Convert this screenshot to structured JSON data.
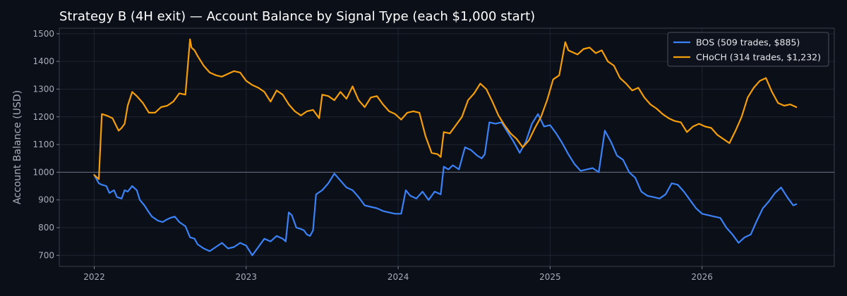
{
  "chart_data": {
    "type": "line",
    "title": "Strategy B (4H exit) — Account Balance by Signal Type (each $1,000 start)",
    "xlabel": "",
    "ylabel": "Account Balance (USD)",
    "xlim": [
      2021.77,
      2026.87
    ],
    "ylim": [
      660,
      1520
    ],
    "x_ticks": [
      2022,
      2023,
      2024,
      2025,
      2026
    ],
    "x_tick_labels": [
      "2022",
      "2023",
      "2024",
      "2025",
      "2026"
    ],
    "y_ticks": [
      700,
      800,
      900,
      1000,
      1100,
      1200,
      1300,
      1400,
      1500
    ],
    "y_tick_labels": [
      "700",
      "800",
      "900",
      "1000",
      "1100",
      "1200",
      "1300",
      "1400",
      "1500"
    ],
    "reference_line": 1000,
    "grid": true,
    "legend_position": "top-right",
    "series": [
      {
        "name": "BOS (509 trades, $885)",
        "color": "#3b82f6",
        "x": [
          2022.0,
          2022.03,
          2022.05,
          2022.08,
          2022.1,
          2022.13,
          2022.15,
          2022.18,
          2022.2,
          2022.22,
          2022.25,
          2022.28,
          2022.3,
          2022.33,
          2022.36,
          2022.38,
          2022.42,
          2022.45,
          2022.48,
          2022.5,
          2022.53,
          2022.56,
          2022.6,
          2022.63,
          2022.66,
          2022.68,
          2022.72,
          2022.76,
          2022.8,
          2022.84,
          2022.88,
          2022.92,
          2022.96,
          2023.0,
          2023.04,
          2023.08,
          2023.12,
          2023.16,
          2023.2,
          2023.24,
          2023.26,
          2023.28,
          2023.3,
          2023.33,
          2023.36,
          2023.38,
          2023.4,
          2023.42,
          2023.44,
          2023.46,
          2023.5,
          2023.54,
          2023.58,
          2023.62,
          2023.66,
          2023.7,
          2023.74,
          2023.78,
          2023.82,
          2023.86,
          2023.9,
          2023.94,
          2023.98,
          2024.02,
          2024.05,
          2024.08,
          2024.12,
          2024.16,
          2024.2,
          2024.24,
          2024.28,
          2024.3,
          2024.33,
          2024.36,
          2024.4,
          2024.44,
          2024.48,
          2024.52,
          2024.55,
          2024.57,
          2024.6,
          2024.64,
          2024.68,
          2024.72,
          2024.76,
          2024.8,
          2024.84,
          2024.88,
          2024.92,
          2024.96,
          2025.0,
          2025.04,
          2025.08,
          2025.12,
          2025.16,
          2025.2,
          2025.24,
          2025.28,
          2025.32,
          2025.36,
          2025.4,
          2025.44,
          2025.48,
          2025.52,
          2025.56,
          2025.6,
          2025.64,
          2025.68,
          2025.72,
          2025.76,
          2025.8,
          2025.84,
          2025.88,
          2025.92,
          2025.96,
          2026.0,
          2026.04,
          2026.08,
          2026.12,
          2026.16,
          2026.2,
          2026.24,
          2026.28,
          2026.32,
          2026.36,
          2026.4,
          2026.44,
          2026.48,
          2026.52,
          2026.56,
          2026.6,
          2026.62
        ],
        "values": [
          990,
          960,
          955,
          950,
          925,
          935,
          910,
          905,
          935,
          930,
          950,
          935,
          900,
          880,
          855,
          840,
          825,
          820,
          830,
          835,
          840,
          820,
          805,
          765,
          760,
          740,
          725,
          715,
          730,
          745,
          725,
          730,
          745,
          735,
          700,
          730,
          760,
          750,
          770,
          760,
          750,
          855,
          845,
          800,
          795,
          790,
          775,
          770,
          790,
          920,
          935,
          960,
          995,
          970,
          945,
          935,
          910,
          880,
          875,
          870,
          860,
          855,
          850,
          850,
          935,
          915,
          905,
          930,
          900,
          930,
          920,
          1020,
          1010,
          1025,
          1010,
          1090,
          1080,
          1060,
          1050,
          1065,
          1180,
          1175,
          1180,
          1145,
          1110,
          1070,
          1110,
          1175,
          1210,
          1165,
          1170,
          1140,
          1105,
          1065,
          1030,
          1005,
          1010,
          1015,
          1000,
          1150,
          1110,
          1060,
          1045,
          1000,
          980,
          930,
          915,
          910,
          905,
          920,
          960,
          955,
          930,
          900,
          870,
          850,
          845,
          840,
          835,
          800,
          775,
          745,
          765,
          775,
          825,
          870,
          895,
          925,
          945,
          910,
          880,
          885
        ]
      },
      {
        "name": "CHoCH (314 trades, $1,232)",
        "color": "#f59e0b",
        "x": [
          2022.0,
          2022.03,
          2022.05,
          2022.08,
          2022.12,
          2022.16,
          2022.18,
          2022.2,
          2022.22,
          2022.25,
          2022.28,
          2022.32,
          2022.36,
          2022.4,
          2022.44,
          2022.48,
          2022.52,
          2022.56,
          2022.6,
          2022.63,
          2022.64,
          2022.66,
          2022.68,
          2022.72,
          2022.76,
          2022.8,
          2022.84,
          2022.88,
          2022.92,
          2022.96,
          2023.0,
          2023.04,
          2023.08,
          2023.12,
          2023.16,
          2023.2,
          2023.24,
          2023.28,
          2023.32,
          2023.36,
          2023.4,
          2023.44,
          2023.48,
          2023.5,
          2023.54,
          2023.58,
          2023.62,
          2023.66,
          2023.7,
          2023.74,
          2023.78,
          2023.82,
          2023.86,
          2023.9,
          2023.94,
          2023.98,
          2024.02,
          2024.06,
          2024.1,
          2024.14,
          2024.18,
          2024.22,
          2024.26,
          2024.28,
          2024.3,
          2024.34,
          2024.38,
          2024.42,
          2024.46,
          2024.5,
          2024.54,
          2024.58,
          2024.62,
          2024.66,
          2024.7,
          2024.74,
          2024.78,
          2024.82,
          2024.86,
          2024.9,
          2024.94,
          2024.98,
          2025.02,
          2025.06,
          2025.1,
          2025.12,
          2025.14,
          2025.18,
          2025.22,
          2025.26,
          2025.3,
          2025.34,
          2025.38,
          2025.42,
          2025.46,
          2025.5,
          2025.54,
          2025.58,
          2025.62,
          2025.66,
          2025.7,
          2025.74,
          2025.78,
          2025.82,
          2025.86,
          2025.9,
          2025.94,
          2025.98,
          2026.02,
          2026.06,
          2026.1,
          2026.14,
          2026.18,
          2026.22,
          2026.26,
          2026.3,
          2026.34,
          2026.38,
          2026.42,
          2026.46,
          2026.5,
          2026.54,
          2026.58,
          2026.62
        ],
        "values": [
          990,
          975,
          1210,
          1205,
          1195,
          1150,
          1160,
          1175,
          1240,
          1290,
          1275,
          1250,
          1215,
          1215,
          1235,
          1240,
          1255,
          1285,
          1280,
          1480,
          1450,
          1440,
          1420,
          1385,
          1360,
          1350,
          1345,
          1355,
          1365,
          1360,
          1330,
          1315,
          1305,
          1290,
          1255,
          1295,
          1280,
          1245,
          1220,
          1205,
          1220,
          1225,
          1195,
          1280,
          1275,
          1260,
          1290,
          1265,
          1310,
          1260,
          1235,
          1270,
          1275,
          1245,
          1220,
          1210,
          1190,
          1215,
          1220,
          1215,
          1130,
          1070,
          1065,
          1055,
          1145,
          1140,
          1170,
          1200,
          1260,
          1285,
          1320,
          1300,
          1255,
          1205,
          1170,
          1140,
          1120,
          1090,
          1115,
          1160,
          1200,
          1260,
          1335,
          1350,
          1470,
          1440,
          1435,
          1425,
          1445,
          1450,
          1430,
          1440,
          1400,
          1385,
          1340,
          1320,
          1295,
          1305,
          1270,
          1245,
          1230,
          1210,
          1195,
          1185,
          1180,
          1145,
          1165,
          1175,
          1165,
          1160,
          1135,
          1120,
          1105,
          1150,
          1200,
          1270,
          1305,
          1330,
          1340,
          1290,
          1250,
          1240,
          1245,
          1235
        ]
      }
    ]
  }
}
